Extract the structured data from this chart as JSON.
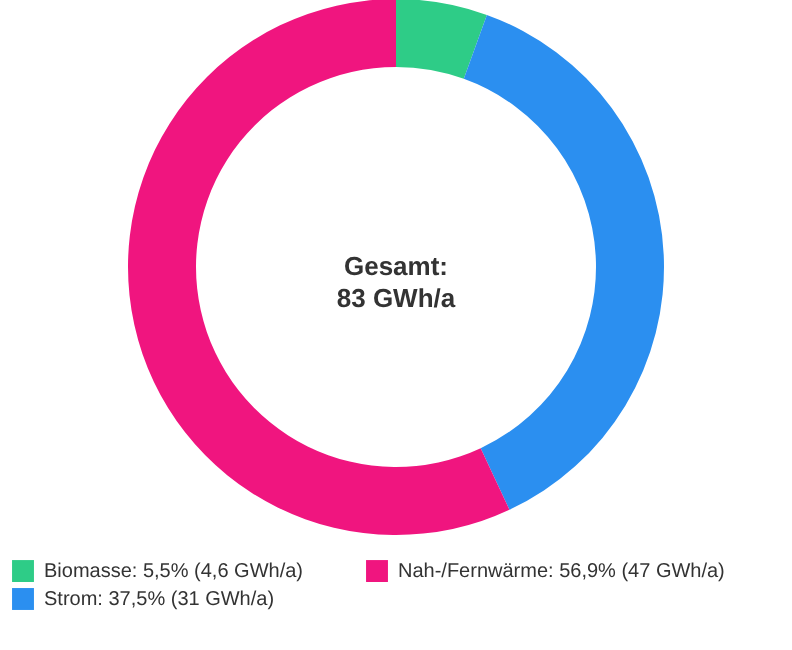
{
  "chart_data": {
    "type": "donut",
    "categories": [
      "Biomasse: 5,5% (4,6 GWh/a)",
      "Strom: 37,5% (31 GWh/a)",
      "Nah-/Fernwärme: 56,9% (47 GWh/a)"
    ],
    "values": [
      5.5,
      37.5,
      56.9
    ],
    "colors": [
      "#2ecc87",
      "#2b8ff0",
      "#f0157f"
    ],
    "annotations": [
      "Gesamt:\n83 GWh/a"
    ],
    "legend": "bottom"
  }
}
